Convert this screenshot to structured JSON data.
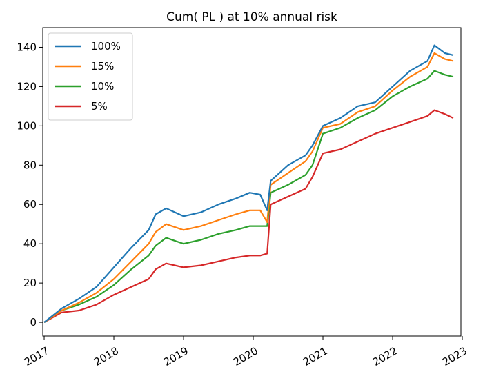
{
  "chart_data": {
    "type": "line",
    "title": "Cum( PL ) at 10% annual risk",
    "xlabel": "",
    "ylabel": "",
    "x_ticks": [
      "2017",
      "2018",
      "2019",
      "2020",
      "2021",
      "2022",
      "2023"
    ],
    "y_ticks": [
      0,
      20,
      40,
      60,
      80,
      100,
      120,
      140
    ],
    "xlim": [
      2016.98,
      2022.98
    ],
    "ylim": [
      -7,
      150
    ],
    "grid": false,
    "legend_position": "top-left",
    "x": [
      2017.0,
      2017.25,
      2017.5,
      2017.75,
      2018.0,
      2018.25,
      2018.5,
      2018.6,
      2018.75,
      2019.0,
      2019.25,
      2019.5,
      2019.75,
      2019.95,
      2020.1,
      2020.2,
      2020.25,
      2020.5,
      2020.75,
      2020.85,
      2021.0,
      2021.25,
      2021.5,
      2021.75,
      2022.0,
      2022.25,
      2022.5,
      2022.6,
      2022.75,
      2022.87
    ],
    "series": [
      {
        "name": "100%",
        "color": "#1f77b4",
        "values": [
          0,
          7,
          12,
          18,
          28,
          38,
          47,
          55,
          58,
          54,
          56,
          60,
          63,
          66,
          65,
          57,
          72,
          80,
          85,
          90,
          100,
          104,
          110,
          112,
          120,
          128,
          133,
          141,
          137,
          136
        ]
      },
      {
        "name": "15%",
        "color": "#ff7f0e",
        "values": [
          0,
          6,
          10,
          15,
          22,
          31,
          40,
          46,
          50,
          47,
          49,
          52,
          55,
          57,
          57,
          51,
          70,
          76,
          82,
          87,
          99,
          101,
          107,
          110,
          118,
          125,
          130,
          137,
          134,
          133
        ]
      },
      {
        "name": "10%",
        "color": "#2ca02c",
        "values": [
          0,
          6,
          9,
          13,
          19,
          27,
          34,
          39,
          43,
          40,
          42,
          45,
          47,
          49,
          49,
          49,
          66,
          70,
          75,
          80,
          96,
          99,
          104,
          108,
          115,
          120,
          124,
          128,
          126,
          125
        ]
      },
      {
        "name": "5%",
        "color": "#d62728",
        "values": [
          0,
          5,
          6,
          9,
          14,
          18,
          22,
          27,
          30,
          28,
          29,
          31,
          33,
          34,
          34,
          35,
          60,
          64,
          68,
          74,
          86,
          88,
          92,
          96,
          99,
          102,
          105,
          108,
          106,
          104
        ]
      }
    ]
  }
}
